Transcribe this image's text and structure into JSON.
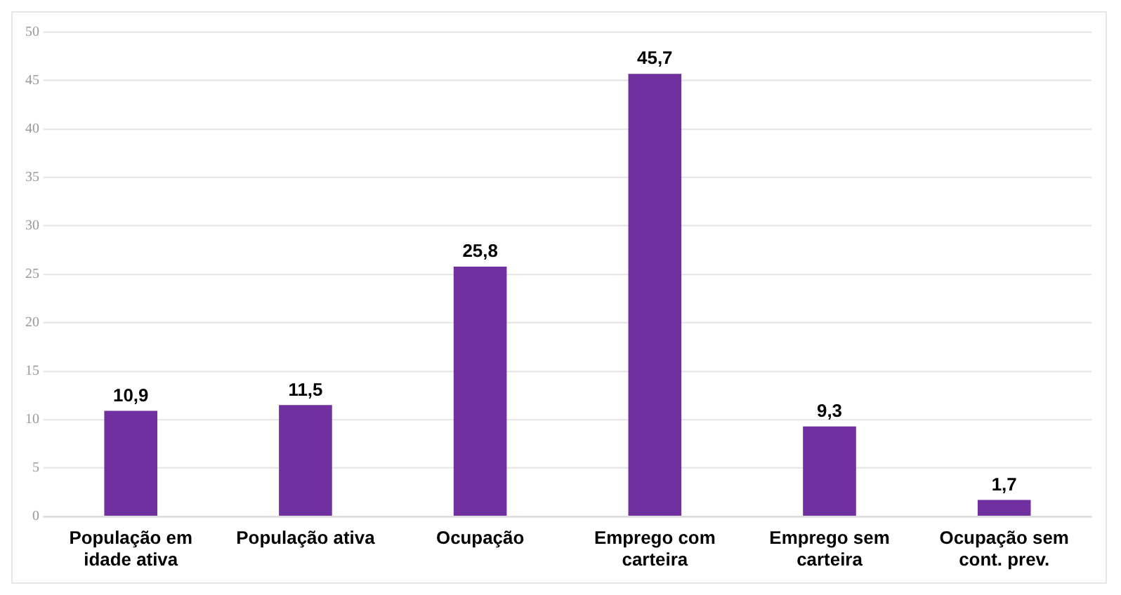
{
  "chart_data": {
    "type": "bar",
    "categories": [
      "População em idade ativa",
      "População ativa",
      "Ocupação",
      "Emprego com carteira",
      "Emprego sem carteira",
      "Ocupação sem cont. prev."
    ],
    "values": [
      10.9,
      11.5,
      25.8,
      45.7,
      9.3,
      1.7
    ],
    "value_labels": [
      "10,9",
      "11,5",
      "25,8",
      "45,7",
      "9,3",
      "1,7"
    ],
    "color": "#7030a0",
    "ylim": [
      0,
      50
    ],
    "yticks": [
      0,
      5,
      10,
      15,
      20,
      25,
      30,
      35,
      40,
      45,
      50
    ],
    "grid": "y"
  }
}
